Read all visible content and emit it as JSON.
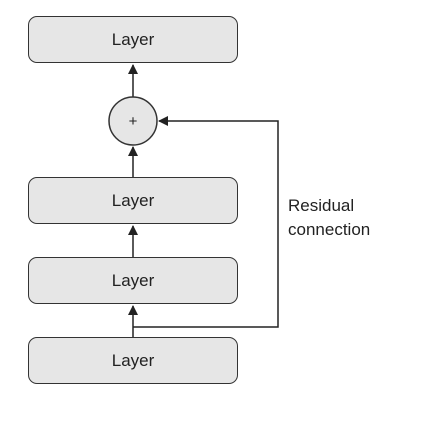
{
  "diagram": {
    "layers": [
      {
        "label": "Layer"
      },
      {
        "label": "Layer"
      },
      {
        "label": "Layer"
      },
      {
        "label": "Layer"
      }
    ],
    "add_node": {
      "symbol": "+"
    },
    "residual": {
      "line1": "Residual",
      "line2": "connection"
    },
    "colors": {
      "box_fill": "#e6e6e6",
      "stroke": "#333333",
      "text": "#222222"
    }
  }
}
